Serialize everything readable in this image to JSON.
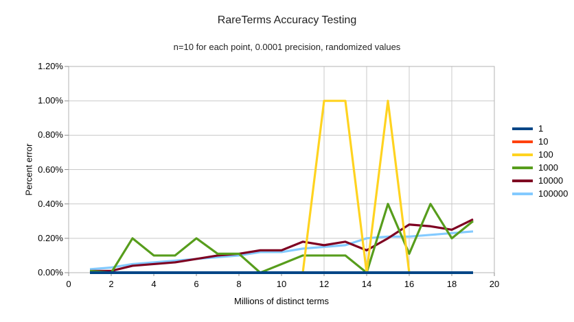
{
  "title": "RareTerms Accuracy Testing",
  "subtitle": "n=10 for each point, 0.0001 precision, randomized values",
  "chart_data": {
    "type": "line",
    "title": "RareTerms Accuracy Testing",
    "subtitle": "n=10 for each point, 0.0001 precision, randomized values",
    "xlabel": "Millions of distinct terms",
    "ylabel": "Percent error",
    "xlim": [
      0,
      20
    ],
    "ylim": [
      0,
      1.2
    ],
    "y_unit": "percent",
    "x_tick_labels": [
      "0",
      "2",
      "4",
      "6",
      "8",
      "10",
      "12",
      "14",
      "16",
      "18",
      "20"
    ],
    "y_tick_labels": [
      "0.00%",
      "0.20%",
      "0.40%",
      "0.60%",
      "0.80%",
      "1.00%",
      "1.20%"
    ],
    "grid": {
      "horizontal_every": 0.2,
      "vertical_at": [
        12,
        14,
        16,
        18,
        20
      ]
    },
    "legend_position": "right",
    "grid_color": "#c8c8c8",
    "border_color": "#b3b3b3",
    "x": [
      1,
      2,
      3,
      4,
      5,
      6,
      7,
      8,
      9,
      10,
      11,
      12,
      13,
      14,
      15,
      16,
      17,
      18,
      19
    ],
    "series": [
      {
        "name": "1",
        "color": "#004586",
        "values": [
          0,
          0,
          0,
          0,
          0,
          0,
          0,
          0,
          0,
          0,
          0,
          0,
          0,
          0,
          0,
          0,
          0,
          0,
          0
        ]
      },
      {
        "name": "10",
        "color": "#FF420E",
        "values": [
          0,
          0,
          0,
          0,
          0,
          0,
          0,
          0,
          0,
          0,
          0,
          0,
          0,
          0,
          0,
          0,
          0,
          0,
          0
        ]
      },
      {
        "name": "100",
        "color": "#FFD320",
        "values": [
          0,
          0,
          0,
          0,
          0,
          0,
          0,
          0,
          0,
          0,
          0,
          1.0,
          1.0,
          0,
          1.0,
          0,
          0,
          0,
          0
        ]
      },
      {
        "name": "1000",
        "color": "#579D1C",
        "values": [
          0.01,
          0,
          0.2,
          0.1,
          0.1,
          0.2,
          0.11,
          0.11,
          0,
          0.05,
          0.1,
          0.1,
          0.1,
          0,
          0.4,
          0.11,
          0.4,
          0.2,
          0.3
        ]
      },
      {
        "name": "10000",
        "color": "#7E0021",
        "values": [
          0.01,
          0.01,
          0.04,
          0.05,
          0.06,
          0.08,
          0.1,
          0.11,
          0.13,
          0.13,
          0.18,
          0.16,
          0.18,
          0.13,
          0.2,
          0.28,
          0.27,
          0.25,
          0.31
        ]
      },
      {
        "name": "100000",
        "color": "#83CAFF",
        "values": [
          0.02,
          0.03,
          0.05,
          0.06,
          0.07,
          0.08,
          0.09,
          0.1,
          0.12,
          0.12,
          0.14,
          0.15,
          0.16,
          0.2,
          0.21,
          0.21,
          0.22,
          0.23,
          0.24
        ]
      }
    ]
  }
}
